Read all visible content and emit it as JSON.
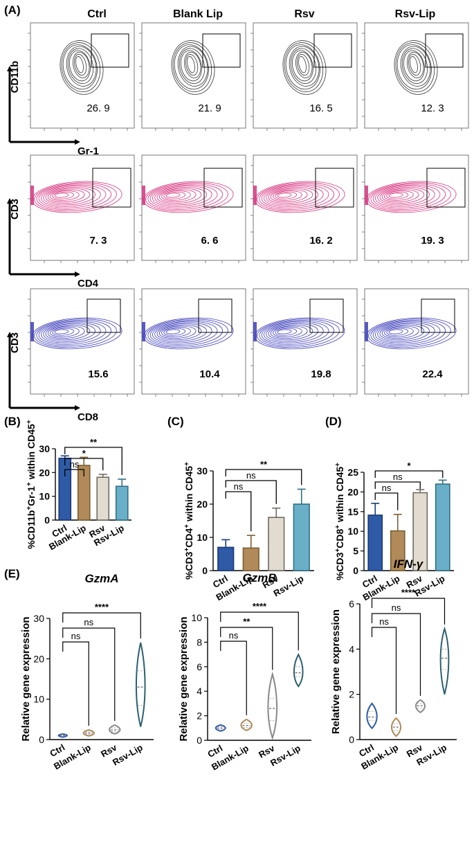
{
  "panel_labels": {
    "A": "(A)",
    "B": "(B)",
    "C": "(C)",
    "D": "(D)",
    "E": "(E)"
  },
  "groups": [
    "Ctrl",
    "Blank Lip",
    "Rsv",
    "Rsv-Lip"
  ],
  "colors": {
    "row1_contour": "#333333",
    "row2_contour": "#d6337f",
    "row3_contour": "#3d3dbb",
    "ctrl": "#2f5aa6",
    "blank": "#b08a58",
    "rsv": "#e2dcd0",
    "rsvlip": "#6aafc8",
    "violin": "#2c5f6f"
  },
  "chart_data": [
    {
      "type": "flow-cytometry-grid",
      "columns": [
        "Ctrl",
        "Blank Lip",
        "Rsv",
        "Rsv-Lip"
      ],
      "rows": [
        {
          "y_axis": "CD11b",
          "x_axis": "Gr-1",
          "values": [
            "26. 9",
            "21. 9",
            "16. 5",
            "12. 3"
          ],
          "bold": false
        },
        {
          "y_axis": "CD3",
          "x_axis": "CD4",
          "values": [
            "7. 3",
            "6. 6",
            "16. 2",
            "19. 3"
          ],
          "bold": true
        },
        {
          "y_axis": "CD3",
          "x_axis": "CD8",
          "values": [
            "15.6",
            "10.4",
            "19.8",
            "22.4"
          ],
          "bold": true
        }
      ]
    },
    {
      "type": "bar",
      "id": "B",
      "categories": [
        "Ctrl",
        "Blank-Lip",
        "Rsv",
        "Rsv-Lip"
      ],
      "values": [
        26,
        23,
        18,
        14.2
      ],
      "errors": [
        1,
        3.4,
        1.2,
        3
      ],
      "ylabel": "%CD11b⁺Gr-1⁺ within CD45⁺",
      "ylim": [
        0,
        30
      ],
      "yticks": [
        "0",
        "10",
        "20",
        "30"
      ],
      "sig": [
        {
          "to": 1,
          "label": "ns"
        },
        {
          "to": 2,
          "label": "*"
        },
        {
          "to": 3,
          "label": "**"
        }
      ]
    },
    {
      "type": "bar",
      "id": "C",
      "categories": [
        "Ctrl",
        "Blank-Lip",
        "Rsv",
        "Rsv-Lip"
      ],
      "values": [
        7,
        6.8,
        16,
        20
      ],
      "errors": [
        2.3,
        3.8,
        2.8,
        4.5
      ],
      "ylabel": "%CD3⁺CD4⁺ within CD45⁺",
      "ylim": [
        0,
        30
      ],
      "yticks": [
        "0",
        "10",
        "20",
        "30"
      ],
      "sig": [
        {
          "to": 1,
          "label": "ns"
        },
        {
          "to": 2,
          "label": "ns"
        },
        {
          "to": 3,
          "label": "**"
        }
      ]
    },
    {
      "type": "bar",
      "id": "D",
      "categories": [
        "Ctrl",
        "Blank-Lip",
        "Rsv",
        "Rsv-Lip"
      ],
      "values": [
        14.1,
        10.1,
        19.8,
        22
      ],
      "errors": [
        3,
        4.2,
        0.8,
        1
      ],
      "ylabel": "%CD3⁺CD8⁺ within CD45⁺",
      "ylim": [
        0,
        25
      ],
      "yticks": [
        "0",
        "5",
        "10",
        "15",
        "20",
        "25"
      ],
      "sig": [
        {
          "to": 1,
          "label": "ns"
        },
        {
          "to": 2,
          "label": "ns"
        },
        {
          "to": 3,
          "label": "*"
        }
      ]
    },
    {
      "type": "violin",
      "id": "GzmA",
      "title": "GzmA",
      "categories": [
        "Ctrl",
        "Blank-Lip",
        "Rsv",
        "Rsv-Lip"
      ],
      "ylabel": "Relative gene expression",
      "ylim": [
        0,
        30
      ],
      "yticks": [
        "0",
        "10",
        "20",
        "30"
      ],
      "violins": [
        {
          "min": 0.6,
          "max": 1.4,
          "median": 1.0,
          "q1": 0.85,
          "q3": 1.15,
          "width": 0.45
        },
        {
          "min": 0.9,
          "max": 2.4,
          "median": 1.6,
          "q1": 1.3,
          "q3": 1.9,
          "width": 0.55
        },
        {
          "min": 1.4,
          "max": 3.6,
          "median": 2.4,
          "q1": 2.0,
          "q3": 2.9,
          "width": 0.55
        },
        {
          "min": 3.2,
          "max": 24,
          "median": 13,
          "q1": 8.5,
          "q3": 17,
          "width": 0.45
        }
      ],
      "sig": [
        {
          "to": 1,
          "label": "ns"
        },
        {
          "to": 2,
          "label": "ns"
        },
        {
          "to": 3,
          "label": "****"
        }
      ]
    },
    {
      "type": "violin",
      "id": "GzmB",
      "title": "GzmB",
      "categories": [
        "Ctrl",
        "Blank-Lip",
        "Rsv",
        "Rsv-Lip"
      ],
      "ylabel": "Relative gene expression",
      "ylim": [
        0,
        10
      ],
      "yticks": [
        "0",
        "2",
        "4",
        "6",
        "8",
        "10"
      ],
      "violins": [
        {
          "min": 0.75,
          "max": 1.25,
          "median": 1.0,
          "q1": 0.9,
          "q3": 1.1,
          "width": 0.5
        },
        {
          "min": 0.8,
          "max": 1.7,
          "median": 1.2,
          "q1": 1.05,
          "q3": 1.4,
          "width": 0.55
        },
        {
          "min": 0.2,
          "max": 5.4,
          "median": 2.6,
          "q1": 1.6,
          "q3": 3.4,
          "width": 0.45
        },
        {
          "min": 4.4,
          "max": 7.0,
          "median": 5.5,
          "q1": 5.2,
          "q3": 6.0,
          "width": 0.45
        }
      ],
      "sig": [
        {
          "to": 1,
          "label": "ns"
        },
        {
          "to": 2,
          "label": "**"
        },
        {
          "to": 3,
          "label": "****"
        }
      ]
    },
    {
      "type": "violin",
      "id": "IFNg",
      "title": "IFN-γ",
      "categories": [
        "Ctrl",
        "Blank-Lip",
        "Rsv",
        "Rsv-Lip"
      ],
      "ylabel": "Relative gene expression",
      "ylim": [
        0,
        6
      ],
      "yticks": [
        "0",
        "2",
        "4",
        "6"
      ],
      "violins": [
        {
          "min": 0.5,
          "max": 1.6,
          "median": 1.0,
          "q1": 0.85,
          "q3": 1.25,
          "width": 0.55
        },
        {
          "min": 0.15,
          "max": 0.95,
          "median": 0.55,
          "q1": 0.4,
          "q3": 0.7,
          "width": 0.5
        },
        {
          "min": 1.2,
          "max": 1.75,
          "median": 1.5,
          "q1": 1.4,
          "q3": 1.6,
          "width": 0.5
        },
        {
          "min": 2.0,
          "max": 4.9,
          "median": 3.6,
          "q1": 3.1,
          "q3": 4.0,
          "width": 0.45
        }
      ],
      "sig": [
        {
          "to": 1,
          "label": "ns"
        },
        {
          "to": 2,
          "label": "ns"
        },
        {
          "to": 3,
          "label": "****"
        }
      ]
    }
  ]
}
